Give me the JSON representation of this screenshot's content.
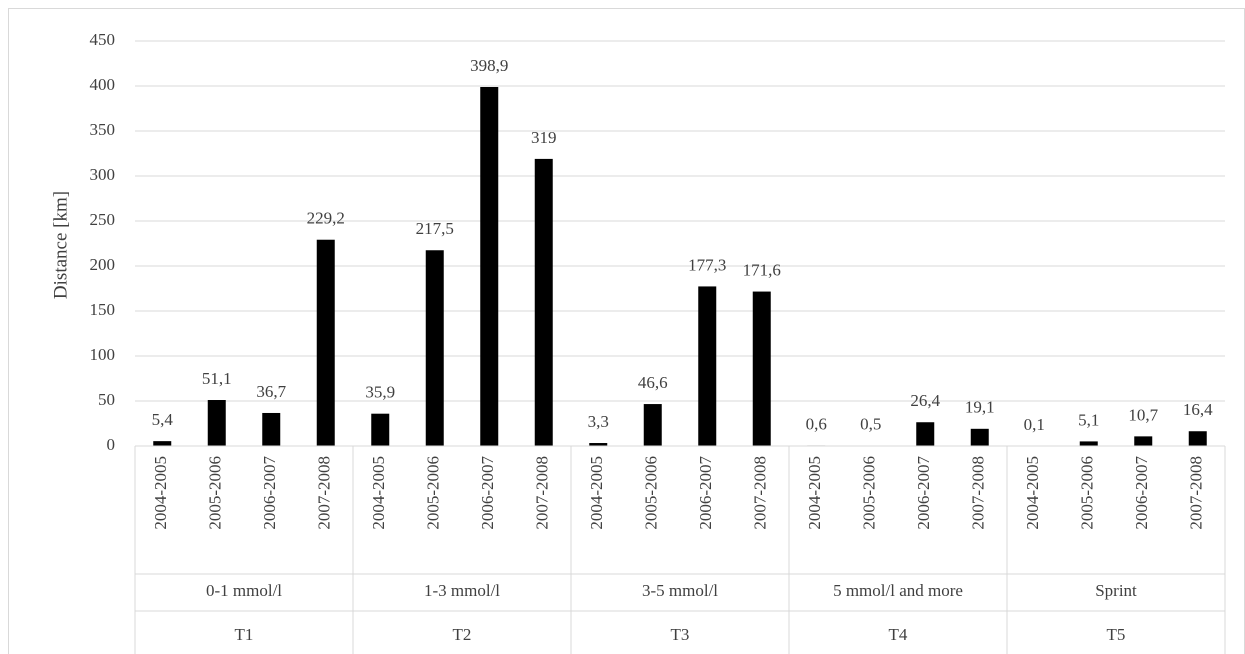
{
  "chart_data": {
    "type": "bar",
    "y_label": "Distance [km]",
    "categories": [
      "2004-2005",
      "2005-2006",
      "2006-2007",
      "2007-2008",
      "2004-2005",
      "2005-2006",
      "2006-2007",
      "2007-2008",
      "2004-2005",
      "2005-2006",
      "2006-2007",
      "2007-2008",
      "2004-2005",
      "2005-2006",
      "2006-2007",
      "2007-2008",
      "2004-2005",
      "2005-2006",
      "2006-2007",
      "2007-2008"
    ],
    "groups": [
      "0-1 mmol/l",
      "1-3 mmol/l",
      "3-5 mmol/l",
      "5 mmol/l and more",
      "Sprint"
    ],
    "group_codes": [
      "T1",
      "T2",
      "T3",
      "T4",
      "T5"
    ],
    "values": [
      5.4,
      51.1,
      36.7,
      229.2,
      35.9,
      217.5,
      398.9,
      319,
      3.3,
      46.6,
      177.3,
      171.6,
      0.6,
      0.5,
      26.4,
      19.1,
      0.1,
      5.1,
      10.7,
      16.4
    ],
    "value_labels": [
      "5,4",
      "51,1",
      "36,7",
      "229,2",
      "35,9",
      "217,5",
      "398,9",
      "319",
      "3,3",
      "46,6",
      "177,3",
      "171,6",
      "0,6",
      "0,5",
      "26,4",
      "19,1",
      "0,1",
      "5,1",
      "10,7",
      "16,4"
    ],
    "color": "#000000",
    "ylim": [
      0,
      450
    ],
    "yticks": [
      0,
      50,
      100,
      150,
      200,
      250,
      300,
      350,
      400,
      450
    ],
    "grid": true
  }
}
